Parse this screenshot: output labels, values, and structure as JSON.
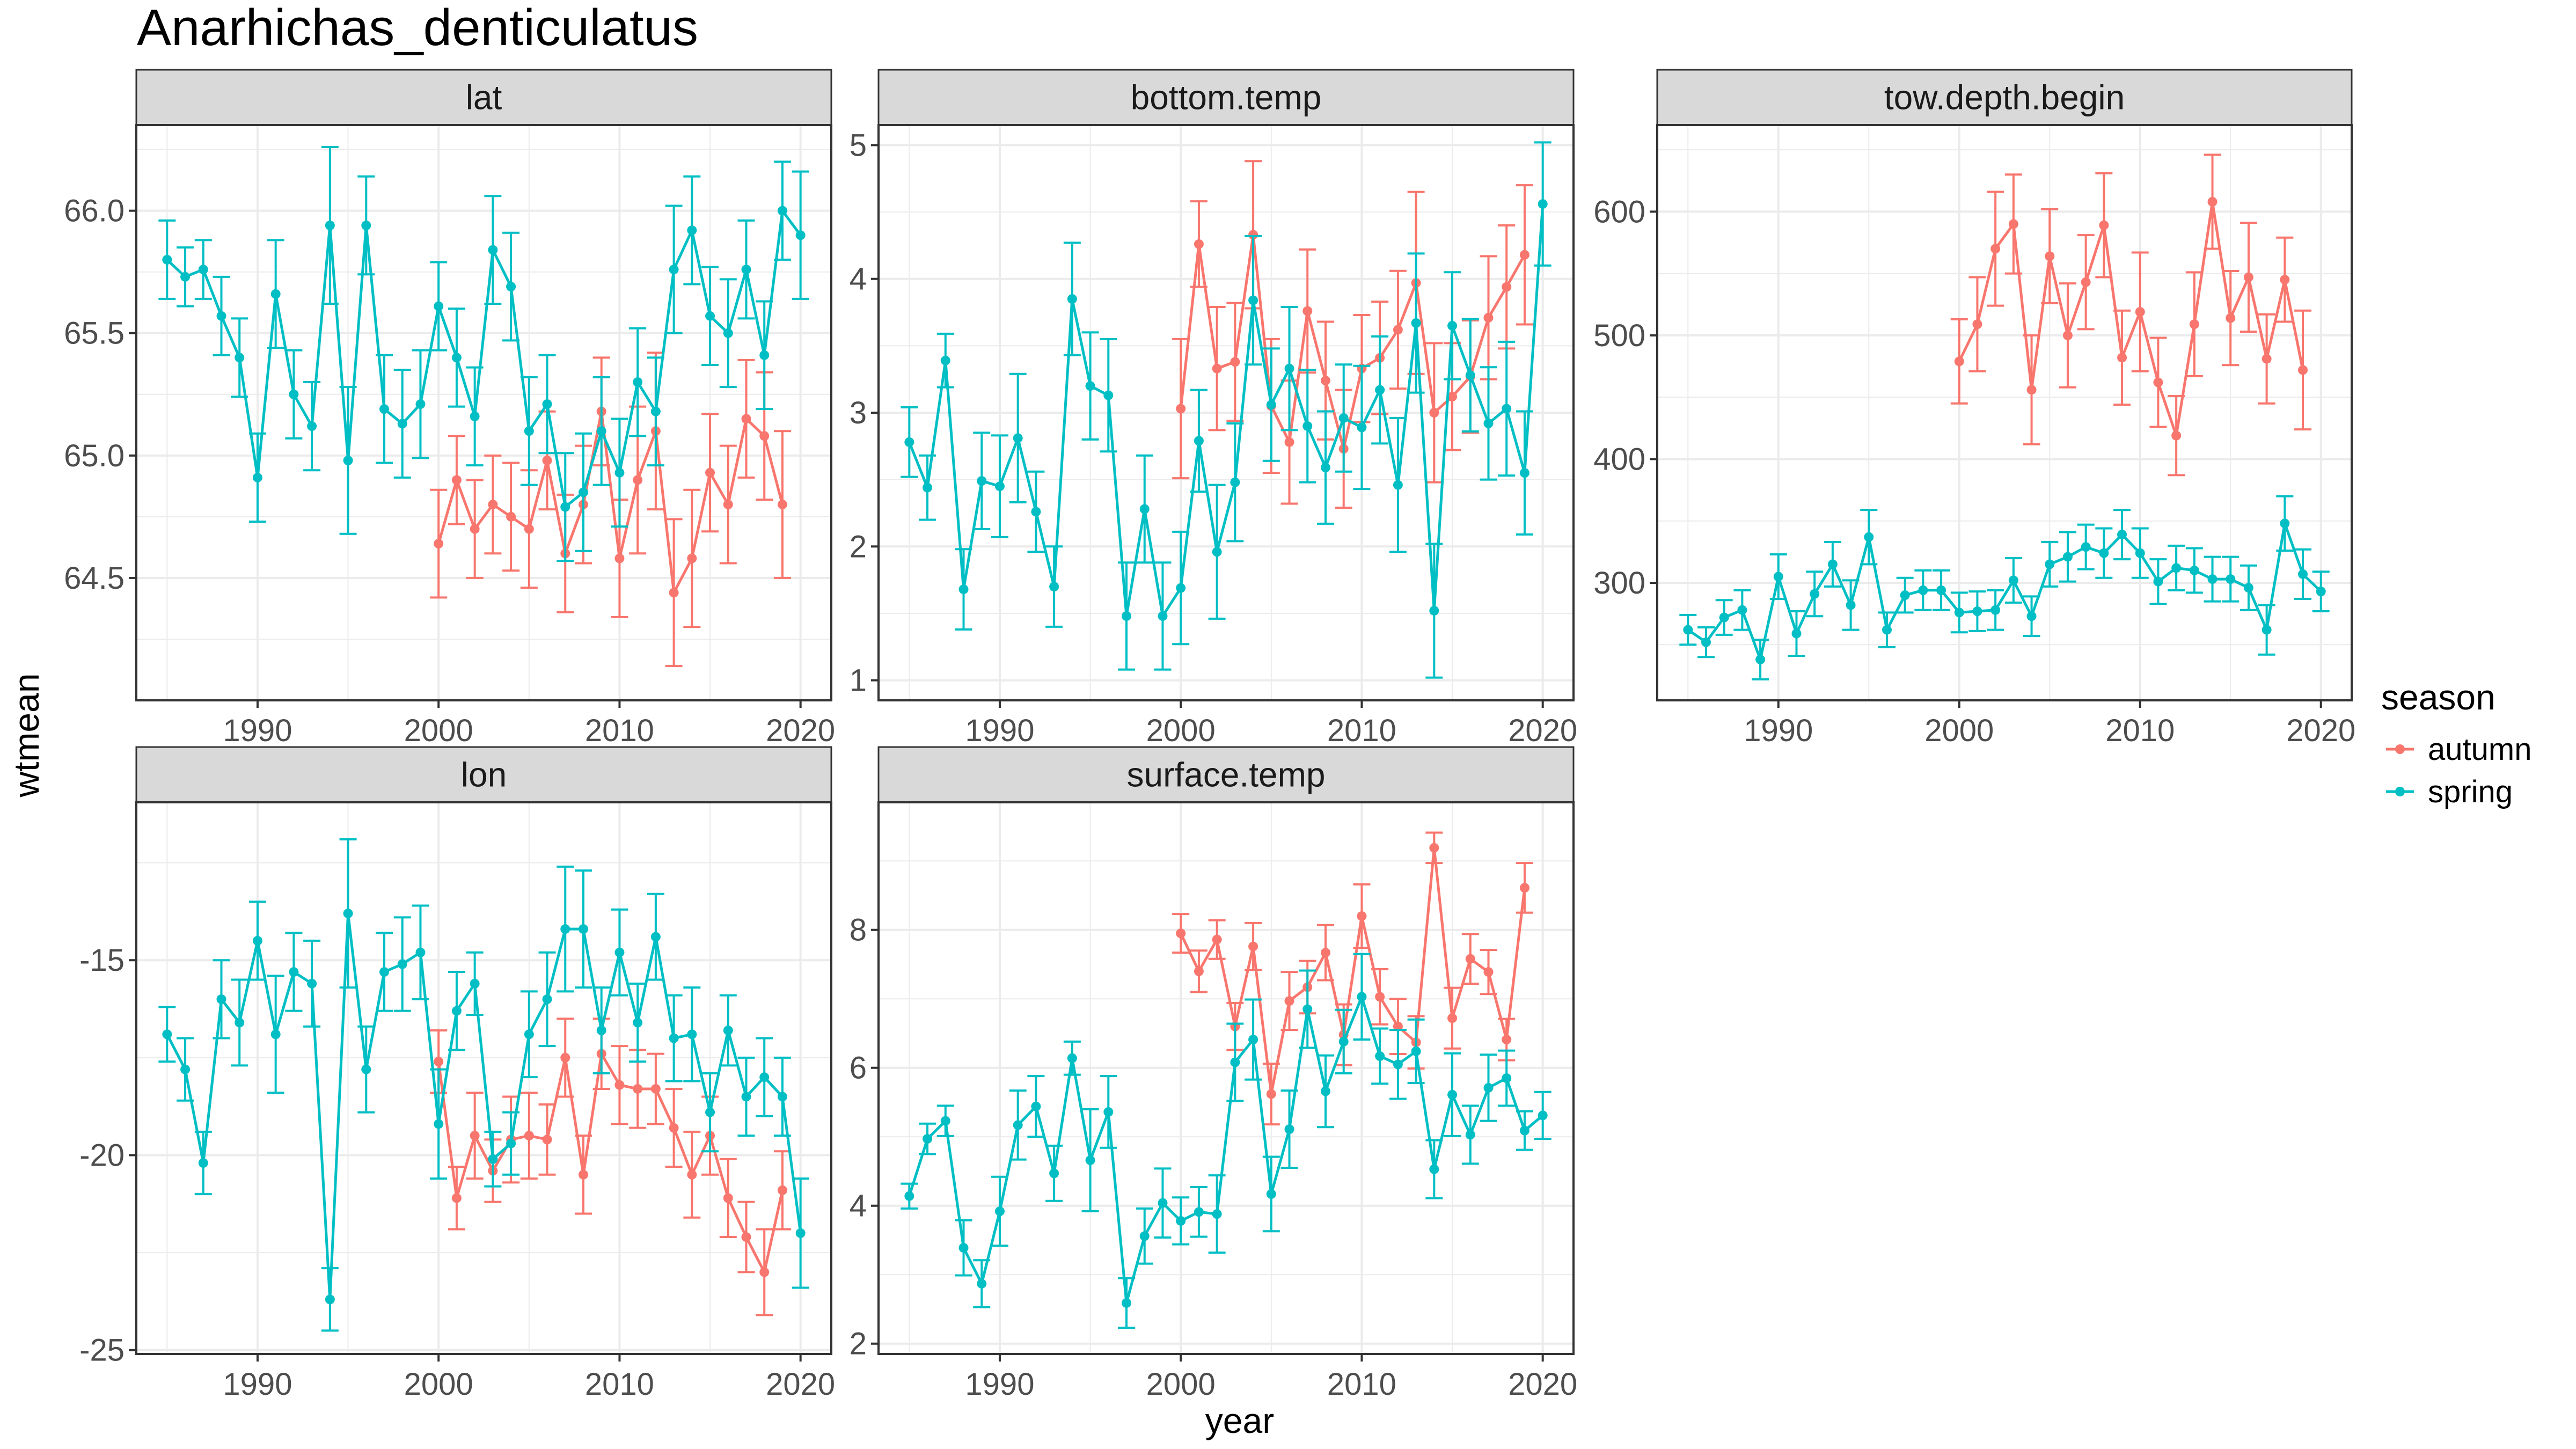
{
  "figure": {
    "title": "Anarhichas_denticulatus",
    "xlabel": "year",
    "ylabel": "wtmean",
    "legend": {
      "title": "season",
      "position": "right",
      "items": [
        {
          "name": "autumn",
          "color": "#F8766D"
        },
        {
          "name": "spring",
          "color": "#00BFC4"
        }
      ]
    },
    "style": {
      "grid": true,
      "strip_fill": "#D9D9D9",
      "grid_color": "#EBEBEB"
    }
  },
  "chart_data": [
    {
      "type": "line",
      "panel": "lat",
      "xlim": [
        1983.3,
        2021.7
      ],
      "ylim": [
        64.0,
        66.35
      ],
      "xticks": [
        1990,
        2000,
        2010,
        2020
      ],
      "xtick_labels": [
        "1990",
        "2000",
        "2010",
        "2020"
      ],
      "yticks": [
        64.5,
        65.0,
        65.5,
        66.0
      ],
      "ytick_labels": [
        "64.5",
        "65.0",
        "65.5",
        "66.0"
      ],
      "series": [
        {
          "name": "autumn",
          "x": [
            2000,
            2001,
            2002,
            2003,
            2004,
            2005,
            2006,
            2007,
            2008,
            2009,
            2010,
            2011,
            2012,
            2013,
            2014,
            2015,
            2016,
            2017,
            2018,
            2019
          ],
          "y": [
            64.64,
            64.9,
            64.7,
            64.8,
            64.75,
            64.7,
            64.98,
            64.6,
            64.8,
            65.18,
            64.58,
            64.9,
            65.1,
            64.44,
            64.58,
            64.93,
            64.8,
            65.15,
            65.08,
            64.8
          ],
          "err": [
            0.22,
            0.18,
            0.2,
            0.2,
            0.22,
            0.24,
            0.2,
            0.24,
            0.24,
            0.22,
            0.24,
            0.3,
            0.32,
            0.3,
            0.28,
            0.24,
            0.24,
            0.24,
            0.26,
            0.3
          ]
        },
        {
          "name": "spring",
          "x": [
            1985,
            1986,
            1987,
            1988,
            1989,
            1990,
            1991,
            1992,
            1993,
            1994,
            1995,
            1996,
            1997,
            1998,
            1999,
            2000,
            2001,
            2002,
            2003,
            2004,
            2005,
            2006,
            2007,
            2008,
            2009,
            2010,
            2011,
            2012,
            2013,
            2014,
            2015,
            2016,
            2017,
            2018,
            2019,
            2020
          ],
          "y": [
            65.8,
            65.73,
            65.76,
            65.57,
            65.4,
            64.91,
            65.66,
            65.25,
            65.12,
            65.94,
            64.98,
            65.94,
            65.19,
            65.13,
            65.21,
            65.61,
            65.4,
            65.16,
            65.84,
            65.69,
            65.1,
            65.21,
            64.79,
            64.85,
            65.1,
            64.93,
            65.3,
            65.18,
            65.76,
            65.92,
            65.57,
            65.5,
            65.76,
            65.41,
            66.0,
            65.9
          ],
          "err": [
            0.16,
            0.12,
            0.12,
            0.16,
            0.16,
            0.18,
            0.22,
            0.18,
            0.18,
            0.32,
            0.3,
            0.2,
            0.22,
            0.22,
            0.22,
            0.18,
            0.2,
            0.2,
            0.22,
            0.22,
            0.22,
            0.2,
            0.22,
            0.24,
            0.22,
            0.22,
            0.22,
            0.22,
            0.26,
            0.22,
            0.2,
            0.22,
            0.2,
            0.22,
            0.2,
            0.26
          ]
        }
      ]
    },
    {
      "type": "line",
      "panel": "bottom.temp",
      "xlim": [
        1983.3,
        2021.7
      ],
      "ylim": [
        0.85,
        5.15
      ],
      "xticks": [
        1990,
        2000,
        2010,
        2020
      ],
      "xtick_labels": [
        "1990",
        "2000",
        "2010",
        "2020"
      ],
      "yticks": [
        1,
        2,
        3,
        4,
        5
      ],
      "ytick_labels": [
        "1",
        "2",
        "3",
        "4",
        "5"
      ],
      "series": [
        {
          "name": "autumn",
          "x": [
            2000,
            2001,
            2002,
            2003,
            2004,
            2005,
            2006,
            2007,
            2008,
            2009,
            2010,
            2011,
            2012,
            2013,
            2014,
            2015,
            2016,
            2017,
            2018,
            2019
          ],
          "y": [
            3.03,
            4.26,
            3.33,
            3.38,
            4.33,
            3.05,
            2.78,
            3.76,
            3.24,
            2.73,
            3.33,
            3.41,
            3.62,
            3.97,
            3.0,
            3.12,
            3.27,
            3.71,
            3.94,
            4.18
          ],
          "err": [
            0.52,
            0.32,
            0.46,
            0.44,
            0.55,
            0.5,
            0.46,
            0.46,
            0.44,
            0.44,
            0.4,
            0.42,
            0.44,
            0.68,
            0.52,
            0.4,
            0.42,
            0.46,
            0.46,
            0.52
          ]
        },
        {
          "name": "spring",
          "x": [
            1985,
            1986,
            1987,
            1988,
            1989,
            1990,
            1991,
            1992,
            1993,
            1994,
            1995,
            1996,
            1997,
            1998,
            1999,
            2000,
            2001,
            2002,
            2003,
            2004,
            2005,
            2006,
            2007,
            2008,
            2009,
            2010,
            2011,
            2012,
            2013,
            2014,
            2015,
            2016,
            2017,
            2018,
            2019,
            2020
          ],
          "y": [
            2.78,
            2.44,
            3.39,
            1.68,
            2.49,
            2.45,
            2.81,
            2.26,
            1.7,
            3.85,
            3.2,
            3.13,
            1.48,
            2.28,
            1.48,
            1.69,
            2.79,
            1.96,
            2.48,
            3.84,
            3.06,
            3.33,
            2.9,
            2.59,
            2.96,
            2.89,
            3.17,
            2.46,
            3.67,
            1.52,
            3.65,
            3.28,
            2.92,
            3.03,
            2.55,
            4.56
          ],
          "err": [
            0.26,
            0.24,
            0.2,
            0.3,
            0.36,
            0.38,
            0.48,
            0.3,
            0.3,
            0.42,
            0.4,
            0.42,
            0.4,
            0.4,
            0.4,
            0.42,
            0.38,
            0.5,
            0.44,
            0.48,
            0.42,
            0.46,
            0.42,
            0.42,
            0.4,
            0.46,
            0.4,
            0.5,
            0.52,
            0.5,
            0.4,
            0.42,
            0.42,
            0.5,
            0.46,
            0.46
          ]
        }
      ]
    },
    {
      "type": "line",
      "panel": "tow.depth.begin",
      "xlim": [
        1983.3,
        2021.7
      ],
      "ylim": [
        205,
        670
      ],
      "xticks": [
        1990,
        2000,
        2010,
        2020
      ],
      "xtick_labels": [
        "1990",
        "2000",
        "2010",
        "2020"
      ],
      "yticks": [
        300,
        400,
        500,
        600
      ],
      "ytick_labels": [
        "300",
        "400",
        "500",
        "600"
      ],
      "series": [
        {
          "name": "autumn",
          "x": [
            2000,
            2001,
            2002,
            2003,
            2004,
            2005,
            2006,
            2007,
            2008,
            2009,
            2010,
            2011,
            2012,
            2013,
            2014,
            2015,
            2016,
            2017,
            2018,
            2019
          ],
          "y": [
            479,
            509,
            570,
            590,
            456,
            564,
            500,
            543,
            589,
            482,
            519,
            462,
            419,
            509,
            608,
            514,
            547,
            481,
            545,
            472
          ],
          "err": [
            34,
            38,
            46,
            40,
            44,
            38,
            42,
            38,
            42,
            38,
            48,
            36,
            32,
            42,
            38,
            38,
            44,
            36,
            34,
            48
          ]
        },
        {
          "name": "spring",
          "x": [
            1985,
            1986,
            1987,
            1988,
            1989,
            1990,
            1991,
            1992,
            1993,
            1994,
            1995,
            1996,
            1997,
            1998,
            1999,
            2000,
            2001,
            2002,
            2003,
            2004,
            2005,
            2006,
            2007,
            2008,
            2009,
            2010,
            2011,
            2012,
            2013,
            2014,
            2015,
            2016,
            2017,
            2018,
            2019,
            2020
          ],
          "y": [
            262,
            252,
            272,
            278,
            238,
            305,
            259,
            291,
            315,
            282,
            337,
            262,
            290,
            294,
            294,
            276,
            277,
            278,
            302,
            273,
            315,
            321,
            329,
            324,
            339,
            324,
            301,
            312,
            310,
            303,
            303,
            296,
            262,
            348,
            307,
            293
          ],
          "err": [
            12,
            12,
            14,
            16,
            16,
            18,
            18,
            18,
            18,
            20,
            22,
            14,
            14,
            16,
            16,
            16,
            16,
            16,
            18,
            16,
            18,
            20,
            18,
            20,
            20,
            20,
            18,
            18,
            18,
            18,
            18,
            18,
            20,
            22,
            20,
            16
          ]
        }
      ]
    },
    {
      "type": "line",
      "panel": "lon",
      "xlim": [
        1983.3,
        2021.7
      ],
      "ylim": [
        -25.1,
        -10.95
      ],
      "xticks": [
        1990,
        2000,
        2010,
        2020
      ],
      "xtick_labels": [
        "1990",
        "2000",
        "2010",
        "2020"
      ],
      "yticks": [
        -25,
        -20,
        -15
      ],
      "ytick_labels": [
        "-25",
        "-20",
        "-15"
      ],
      "series": [
        {
          "name": "autumn",
          "x": [
            2000,
            2001,
            2002,
            2003,
            2004,
            2005,
            2006,
            2007,
            2008,
            2009,
            2010,
            2011,
            2012,
            2013,
            2014,
            2015,
            2016,
            2017,
            2018,
            2019
          ],
          "y": [
            -17.6,
            -21.1,
            -19.5,
            -20.4,
            -19.6,
            -19.5,
            -19.6,
            -17.5,
            -20.5,
            -17.4,
            -18.2,
            -18.3,
            -18.3,
            -19.3,
            -20.5,
            -19.5,
            -21.1,
            -22.1,
            -23.0,
            -20.9
          ],
          "err": [
            0.8,
            0.8,
            1.1,
            0.8,
            1.1,
            1.1,
            0.9,
            1.0,
            1.0,
            0.9,
            1.0,
            1.0,
            0.9,
            1.0,
            1.1,
            1.0,
            1.0,
            0.9,
            1.1,
            1.0
          ]
        },
        {
          "name": "spring",
          "x": [
            1985,
            1986,
            1987,
            1988,
            1989,
            1990,
            1991,
            1992,
            1993,
            1994,
            1995,
            1996,
            1997,
            1998,
            1999,
            2000,
            2001,
            2002,
            2003,
            2004,
            2005,
            2006,
            2007,
            2008,
            2009,
            2010,
            2011,
            2012,
            2013,
            2014,
            2015,
            2016,
            2017,
            2018,
            2019,
            2020
          ],
          "y": [
            -16.9,
            -17.8,
            -20.2,
            -16.0,
            -16.6,
            -14.5,
            -16.9,
            -15.3,
            -15.6,
            -23.7,
            -13.8,
            -17.8,
            -15.3,
            -15.1,
            -14.8,
            -19.2,
            -16.3,
            -15.6,
            -20.1,
            -19.7,
            -16.9,
            -16.0,
            -14.2,
            -14.2,
            -16.8,
            -14.8,
            -16.6,
            -14.4,
            -17.0,
            -16.9,
            -18.9,
            -16.8,
            -18.5,
            -18.0,
            -18.5,
            -22.0
          ],
          "err": [
            0.7,
            0.8,
            0.8,
            1.0,
            1.1,
            1.0,
            1.5,
            1.0,
            1.1,
            0.8,
            1.9,
            1.1,
            1.0,
            1.2,
            1.2,
            1.4,
            1.0,
            0.8,
            0.7,
            0.8,
            1.1,
            1.2,
            1.6,
            1.5,
            1.1,
            1.1,
            1.0,
            1.1,
            1.1,
            1.2,
            1.0,
            0.9,
            1.0,
            1.0,
            1.0,
            1.4
          ]
        }
      ]
    },
    {
      "type": "line",
      "panel": "surface.temp",
      "xlim": [
        1983.3,
        2021.7
      ],
      "ylim": [
        1.85,
        9.85
      ],
      "xticks": [
        1990,
        2000,
        2010,
        2020
      ],
      "xtick_labels": [
        "1990",
        "2000",
        "2010",
        "2020"
      ],
      "yticks": [
        2,
        4,
        6,
        8
      ],
      "ytick_labels": [
        "2",
        "4",
        "6",
        "8"
      ],
      "series": [
        {
          "name": "autumn",
          "x": [
            2000,
            2001,
            2002,
            2003,
            2004,
            2005,
            2006,
            2007,
            2008,
            2009,
            2010,
            2011,
            2012,
            2013,
            2014,
            2015,
            2016,
            2017,
            2018,
            2019
          ],
          "y": [
            7.95,
            7.4,
            7.86,
            6.6,
            7.76,
            5.62,
            6.97,
            7.17,
            7.67,
            6.48,
            8.2,
            7.03,
            6.6,
            6.37,
            9.19,
            6.72,
            7.58,
            7.39,
            6.41,
            8.61
          ],
          "err": [
            0.28,
            0.3,
            0.28,
            0.34,
            0.34,
            0.44,
            0.42,
            0.38,
            0.4,
            0.44,
            0.46,
            0.4,
            0.4,
            0.38,
            0.22,
            0.44,
            0.36,
            0.32,
            0.3,
            0.36
          ]
        },
        {
          "name": "spring",
          "x": [
            1985,
            1986,
            1987,
            1988,
            1989,
            1990,
            1991,
            1992,
            1993,
            1994,
            1995,
            1996,
            1997,
            1998,
            1999,
            2000,
            2001,
            2002,
            2003,
            2004,
            2005,
            2006,
            2007,
            2008,
            2009,
            2010,
            2011,
            2012,
            2013,
            2014,
            2015,
            2016,
            2017,
            2018,
            2019,
            2020
          ],
          "y": [
            4.14,
            4.97,
            5.23,
            3.39,
            2.87,
            3.92,
            5.17,
            5.44,
            4.47,
            6.14,
            4.66,
            5.36,
            2.59,
            3.56,
            4.04,
            3.78,
            3.91,
            3.88,
            6.08,
            6.41,
            4.17,
            5.11,
            6.85,
            5.66,
            6.38,
            7.03,
            6.17,
            6.05,
            6.24,
            4.53,
            5.61,
            5.03,
            5.71,
            5.85,
            5.09,
            5.31
          ],
          "err": [
            0.18,
            0.22,
            0.22,
            0.4,
            0.34,
            0.5,
            0.5,
            0.44,
            0.4,
            0.24,
            0.74,
            0.52,
            0.36,
            0.4,
            0.5,
            0.34,
            0.36,
            0.56,
            0.56,
            0.58,
            0.54,
            0.56,
            0.56,
            0.52,
            0.46,
            0.62,
            0.4,
            0.5,
            0.46,
            0.42,
            0.6,
            0.42,
            0.48,
            0.4,
            0.28,
            0.34
          ]
        }
      ]
    }
  ]
}
